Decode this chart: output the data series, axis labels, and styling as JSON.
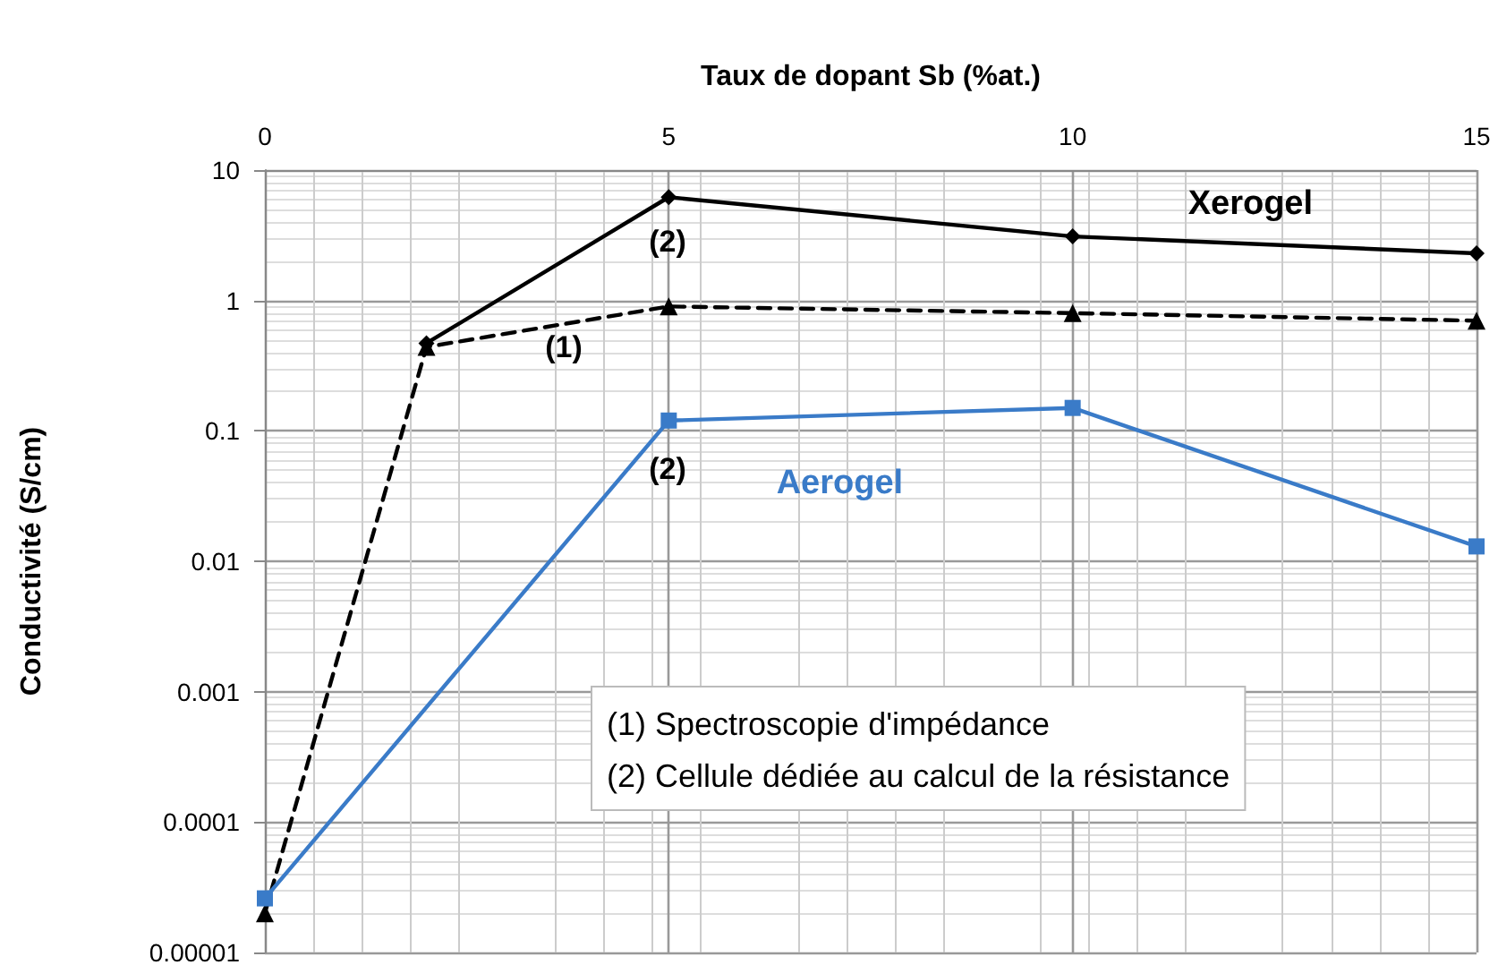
{
  "chart_data": {
    "type": "line",
    "xlabel": "Taux de dopant Sb (%at.)",
    "ylabel": "Conductivité (S/cm)",
    "log": "y",
    "grid": true,
    "xlim": [
      0,
      15
    ],
    "xticks": [
      0,
      5,
      10,
      15
    ],
    "ylim": [
      1e-05,
      10
    ],
    "yticks": [
      {
        "value": 1e-05,
        "label": "0.00001"
      },
      0.0001,
      0.001,
      0.01,
      0.1,
      1,
      10
    ],
    "series": [
      {
        "name": "Xerogel",
        "color": "#000000",
        "marker": "diamond",
        "line_style": "solid",
        "x": [
          2,
          5,
          10,
          15
        ],
        "values": [
          0.47,
          6.2,
          3.1,
          2.3
        ]
      },
      {
        "color": "#000000",
        "marker": "triangle",
        "line_style": "dashed",
        "x": [
          0,
          2,
          5,
          10,
          15
        ],
        "values": [
          2e-05,
          0.44,
          0.9,
          0.8,
          0.7
        ]
      },
      {
        "name": "Aerogel",
        "color": "#3a7bc8",
        "marker": "square",
        "line_style": "solid",
        "x": [
          0,
          5,
          10,
          15
        ],
        "values": [
          2.6e-05,
          0.12,
          0.15,
          0.013
        ]
      }
    ],
    "annotations": [
      "(2)",
      "(1)",
      "(2)",
      "(1) Spectroscopie d'impédance\n(2) Cellule dédiée au calcul de la résistance"
    ]
  }
}
